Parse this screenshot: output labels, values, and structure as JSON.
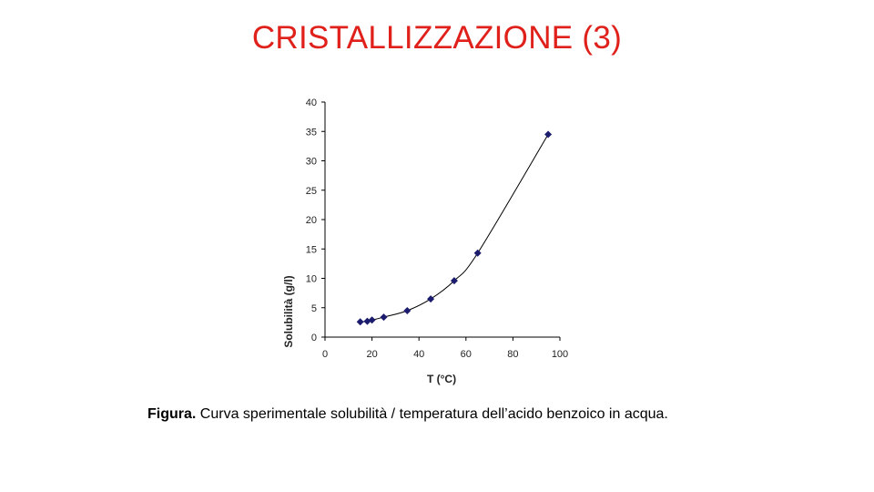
{
  "slide": {
    "title": "CRISTALLIZZAZIONE (3)"
  },
  "caption": {
    "label": "Figura.",
    "text": "Curva sperimentale solubilità / temperatura dell’acido benzoico in acqua."
  },
  "chart_data": {
    "type": "scatter",
    "title": "",
    "xlabel": "T (°C)",
    "ylabel": "Solubilità (g/l)",
    "xlim": [
      0,
      100
    ],
    "ylim": [
      0,
      40
    ],
    "xticks": [
      0,
      20,
      40,
      60,
      80,
      100
    ],
    "yticks": [
      0,
      5,
      10,
      15,
      20,
      25,
      30,
      35,
      40
    ],
    "grid": false,
    "legend": "none",
    "series": [
      {
        "x": [
          15,
          18,
          20,
          25,
          35,
          45,
          55,
          65,
          95
        ],
        "y": [
          2.6,
          2.7,
          2.9,
          3.4,
          4.5,
          6.5,
          9.6,
          14.3,
          34.5
        ]
      }
    ],
    "colors": {
      "marker": "#1c1c6e",
      "line": "#000000",
      "axis": "#000000",
      "tick_text": "#222222"
    }
  }
}
